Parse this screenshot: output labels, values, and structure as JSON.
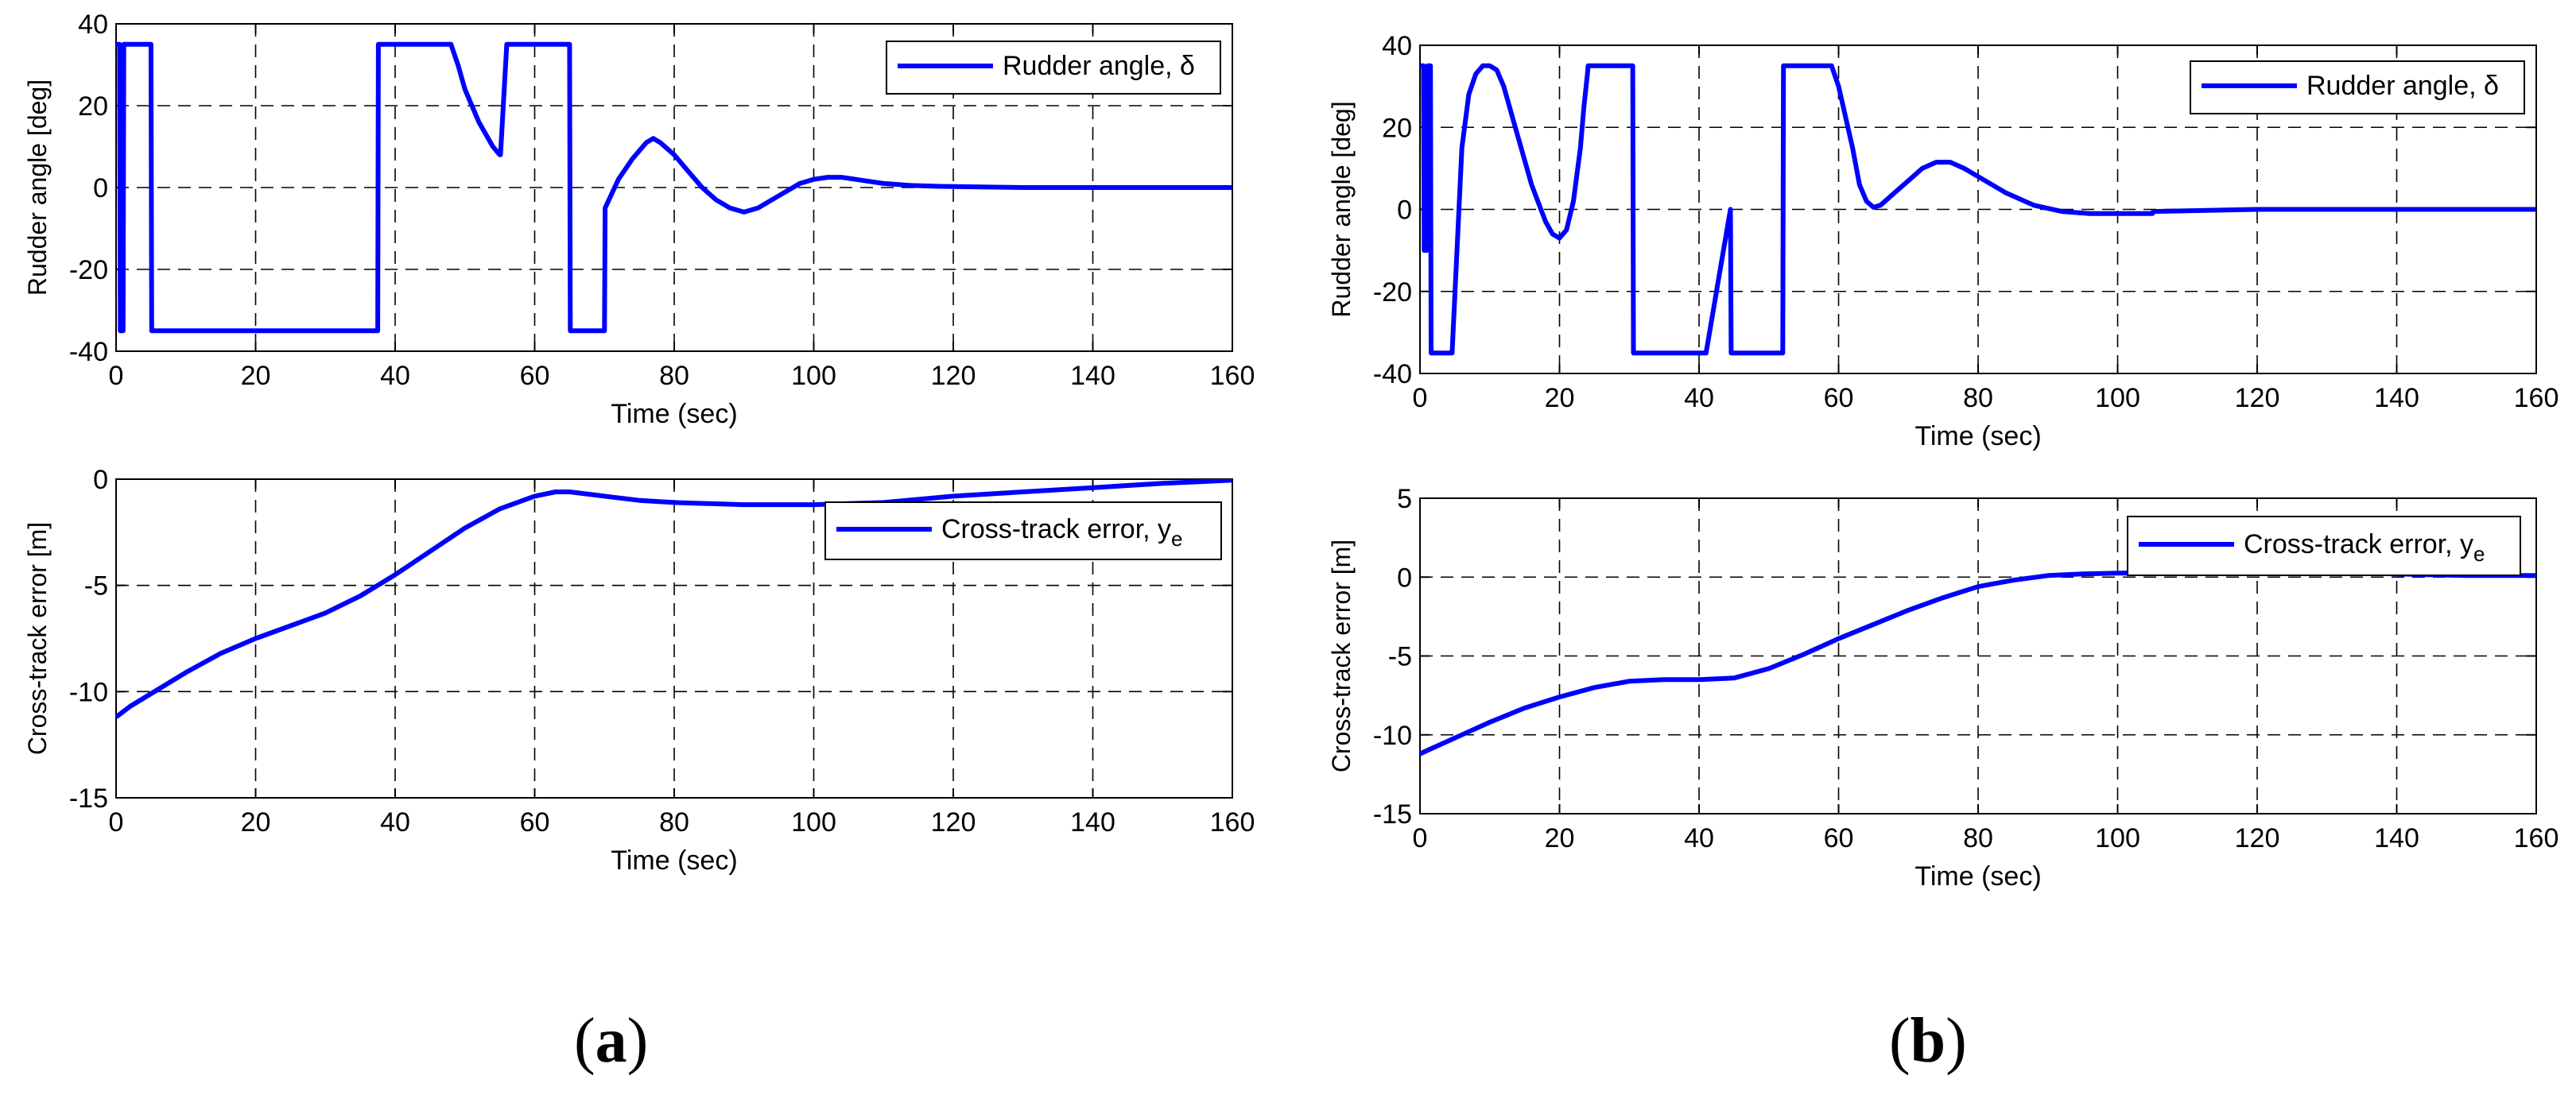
{
  "panels": [
    {
      "label_open": "(",
      "label": "a",
      "label_close": ")"
    },
    {
      "label_open": "(",
      "label": "b",
      "label_close": ")"
    }
  ],
  "line_color": "#0000ff",
  "chart_data": [
    {
      "type": "line",
      "panel": "a",
      "xlabel": "Time (sec)",
      "ylabel": "Rudder angle [deg]",
      "xlim": [
        0,
        160
      ],
      "ylim": [
        -40,
        40
      ],
      "xticks": [
        0,
        20,
        40,
        60,
        80,
        100,
        120,
        140,
        160
      ],
      "yticks": [
        -40,
        -20,
        0,
        20,
        40
      ],
      "grid": true,
      "legend_position": "top-right",
      "series": [
        {
          "name": "Rudder angle, δ",
          "x": [
            0,
            0.5,
            0.6,
            1,
            1.1,
            5,
            5.1,
            6,
            7,
            8,
            9,
            10,
            11,
            12,
            14,
            16,
            18,
            20,
            22,
            24,
            25,
            26,
            27,
            27.1,
            37.5,
            37.6,
            48,
            49,
            50,
            52,
            54,
            55,
            55.1,
            56,
            56.1,
            65,
            65.1,
            66,
            70,
            70.1,
            72,
            74,
            76,
            77,
            78,
            80,
            82,
            84,
            86,
            88,
            90,
            92,
            94,
            96,
            98,
            100,
            102,
            104,
            106,
            108,
            110,
            114,
            118,
            122,
            126,
            130,
            160
          ],
          "y": [
            35,
            35,
            -35,
            -35,
            35,
            35,
            -35,
            -35,
            -35,
            -35,
            -35,
            -35,
            -35,
            -35,
            -35,
            -35,
            -35,
            -35,
            -35,
            -35,
            -35,
            -35,
            -35,
            -35,
            -35,
            35,
            35,
            30,
            24,
            16,
            10,
            8,
            8,
            35,
            35,
            35,
            -35,
            -35,
            -35,
            -5,
            2,
            7,
            11,
            12,
            11,
            8,
            4,
            0,
            -3,
            -5,
            -6,
            -5,
            -3,
            -1,
            1,
            2,
            2.5,
            2.5,
            2,
            1.5,
            1,
            0.5,
            0.3,
            0.2,
            0.1,
            0,
            0
          ]
        }
      ]
    },
    {
      "type": "line",
      "panel": "a",
      "xlabel": "Time (sec)",
      "ylabel": "Cross-track error [m]",
      "xlim": [
        0,
        160
      ],
      "ylim": [
        -15,
        0
      ],
      "xticks": [
        0,
        20,
        40,
        60,
        80,
        100,
        120,
        140,
        160
      ],
      "yticks": [
        -15,
        -10,
        -5,
        0
      ],
      "grid": true,
      "legend_position": "top-right",
      "series": [
        {
          "name": "Cross-track error, y_e",
          "x": [
            0,
            2,
            5,
            10,
            15,
            20,
            25,
            30,
            35,
            40,
            45,
            50,
            55,
            60,
            63,
            65,
            70,
            75,
            80,
            90,
            100,
            110,
            120,
            130,
            140,
            150,
            160
          ],
          "y": [
            -11.2,
            -10.7,
            -10.1,
            -9.1,
            -8.2,
            -7.5,
            -6.9,
            -6.3,
            -5.5,
            -4.5,
            -3.4,
            -2.3,
            -1.4,
            -0.8,
            -0.6,
            -0.6,
            -0.8,
            -1.0,
            -1.1,
            -1.2,
            -1.2,
            -1.1,
            -0.8,
            -0.6,
            -0.4,
            -0.2,
            -0.05
          ]
        }
      ]
    },
    {
      "type": "line",
      "panel": "b",
      "xlabel": "Time (sec)",
      "ylabel": "Rudder angle [deg]",
      "xlim": [
        0,
        160
      ],
      "ylim": [
        -40,
        40
      ],
      "xticks": [
        0,
        20,
        40,
        60,
        80,
        100,
        120,
        140,
        160
      ],
      "yticks": [
        -40,
        -20,
        0,
        20,
        40
      ],
      "grid": true,
      "legend_position": "top-right",
      "series": [
        {
          "name": "Rudder angle, δ",
          "x": [
            0,
            0.5,
            0.6,
            1,
            1.1,
            1.5,
            1.6,
            4.5,
            4.6,
            6,
            7,
            8,
            9,
            10,
            11,
            12,
            14,
            16,
            18,
            19,
            20,
            21,
            22,
            23,
            23.5,
            24,
            24.1,
            30.5,
            30.6,
            41,
            42,
            43,
            44,
            44.5,
            44.6,
            52,
            52.1,
            59,
            60,
            62,
            63,
            64,
            65,
            66,
            68,
            70,
            72,
            74,
            76,
            78,
            80,
            84,
            88,
            92,
            96,
            100,
            105,
            105.1,
            120,
            160
          ],
          "y": [
            35,
            35,
            -10,
            -10,
            35,
            35,
            -35,
            -35,
            -35,
            15,
            28,
            33,
            35,
            35,
            34,
            30,
            18,
            6,
            -3,
            -6,
            -7,
            -5,
            2,
            15,
            25,
            33,
            35,
            35,
            -35,
            -35,
            -25,
            -15,
            -5,
            0,
            -35,
            -35,
            35,
            35,
            30,
            15,
            6,
            2,
            0.5,
            1,
            4,
            7,
            10,
            11.5,
            11.5,
            10,
            8,
            4,
            1,
            -0.5,
            -1,
            -1,
            -1,
            -0.5,
            0,
            0
          ]
        }
      ]
    },
    {
      "type": "line",
      "panel": "b",
      "xlabel": "Time (sec)",
      "ylabel": "Cross-track error [m]",
      "xlim": [
        0,
        160
      ],
      "ylim": [
        -15,
        5
      ],
      "xticks": [
        0,
        20,
        40,
        60,
        80,
        100,
        120,
        140,
        160
      ],
      "yticks": [
        -15,
        -10,
        -5,
        0,
        5
      ],
      "grid": true,
      "legend_position": "top-right",
      "series": [
        {
          "name": "Cross-track error, y_e",
          "x": [
            0,
            2,
            5,
            10,
            15,
            20,
            25,
            30,
            35,
            40,
            45,
            50,
            55,
            60,
            65,
            70,
            75,
            80,
            85,
            90,
            95,
            100,
            110,
            120,
            130,
            140,
            150,
            160
          ],
          "y": [
            -11.2,
            -10.8,
            -10.2,
            -9.2,
            -8.3,
            -7.6,
            -7.0,
            -6.6,
            -6.5,
            -6.5,
            -6.4,
            -5.8,
            -4.9,
            -3.9,
            -3.0,
            -2.1,
            -1.3,
            -0.6,
            -0.2,
            0.1,
            0.2,
            0.25,
            0.3,
            0.3,
            0.3,
            0.2,
            0.1,
            0.1
          ]
        }
      ]
    }
  ]
}
